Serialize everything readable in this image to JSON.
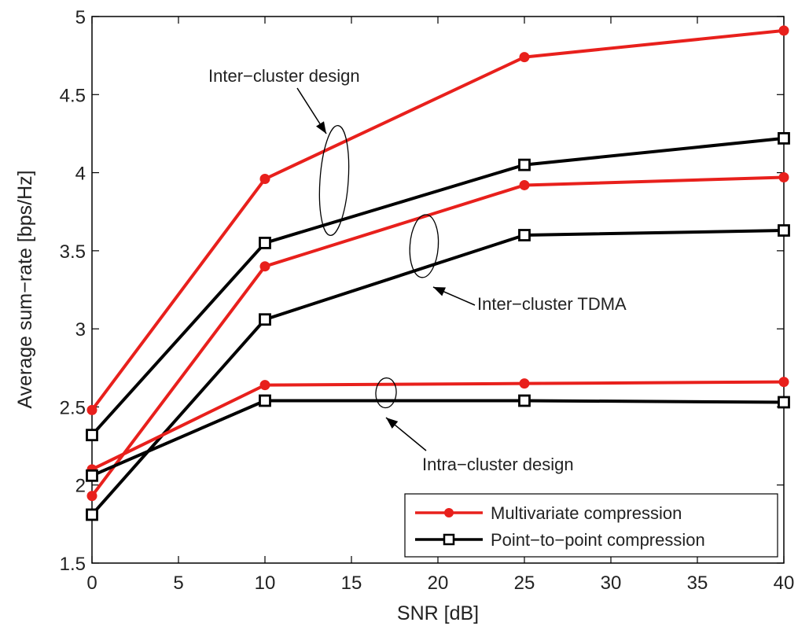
{
  "chart_data": {
    "type": "line",
    "title": "",
    "xlabel": "SNR [dB]",
    "ylabel": "Average sum−rate [bps/Hz]",
    "xlim": [
      0,
      40
    ],
    "ylim": [
      1.5,
      5
    ],
    "xticks": [
      "0",
      "5",
      "10",
      "15",
      "20",
      "25",
      "30",
      "35",
      "40"
    ],
    "yticks": [
      "1.5",
      "2",
      "2.5",
      "3",
      "3.5",
      "4",
      "4.5",
      "5"
    ],
    "x": [
      0,
      10,
      25,
      40
    ],
    "grid": false,
    "legend_position": "bottom-right",
    "series": [
      {
        "group": "Inter−cluster design",
        "method": "Multivariate compression",
        "color": "#e8201c",
        "marker": "circle",
        "values": [
          2.48,
          3.96,
          4.74,
          4.91
        ]
      },
      {
        "group": "Inter−cluster design",
        "method": "Point−to−point compression",
        "color": "#000000",
        "marker": "square",
        "values": [
          2.32,
          3.55,
          4.05,
          4.22
        ]
      },
      {
        "group": "Inter−cluster TDMA",
        "method": "Multivariate compression",
        "color": "#e8201c",
        "marker": "circle",
        "values": [
          1.93,
          3.4,
          3.92,
          3.97
        ]
      },
      {
        "group": "Inter−cluster TDMA",
        "method": "Point−to−point compression",
        "color": "#000000",
        "marker": "square",
        "values": [
          1.81,
          3.06,
          3.6,
          3.63
        ]
      },
      {
        "group": "Intra−cluster design",
        "method": "Multivariate compression",
        "color": "#e8201c",
        "marker": "circle",
        "values": [
          2.1,
          2.64,
          2.65,
          2.66
        ]
      },
      {
        "group": "Intra−cluster design",
        "method": "Point−to−point compression",
        "color": "#000000",
        "marker": "square",
        "values": [
          2.06,
          2.54,
          2.54,
          2.53
        ]
      }
    ],
    "legend": [
      {
        "label": "Multivariate compression",
        "color": "#e8201c",
        "marker": "circle"
      },
      {
        "label": "Point−to−point compression",
        "color": "#000000",
        "marker": "square"
      }
    ],
    "annotations": [
      {
        "text": "Inter−cluster design",
        "ellipse_center": [
          14,
          3.95
        ]
      },
      {
        "text": "Inter−cluster TDMA",
        "ellipse_center": [
          19.2,
          3.53
        ]
      },
      {
        "text": "Intra−cluster design",
        "ellipse_center": [
          17,
          2.59
        ]
      }
    ]
  }
}
